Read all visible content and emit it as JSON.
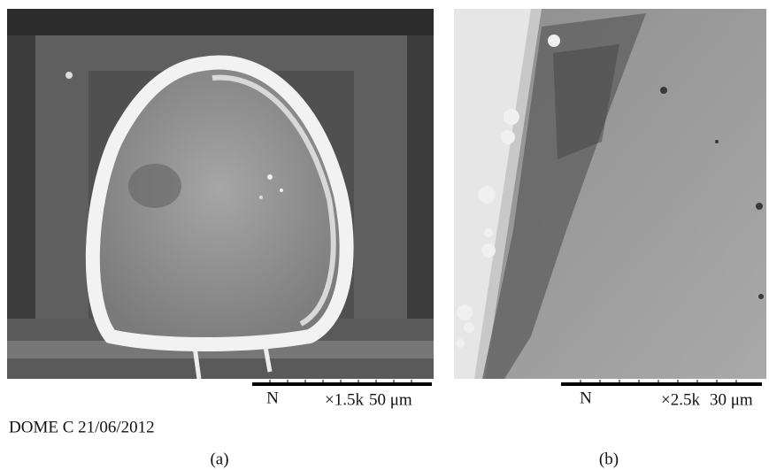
{
  "panels": [
    {
      "label": "(a)",
      "scale_bar": {
        "detector": "N",
        "magnification": "×1.5k",
        "length": "50 μm"
      }
    },
    {
      "label": "(b)",
      "scale_bar": {
        "detector": "N",
        "magnification": "×2.5k",
        "length": "30 μm"
      }
    }
  ],
  "site_date": "DOME C 21/06/2012"
}
